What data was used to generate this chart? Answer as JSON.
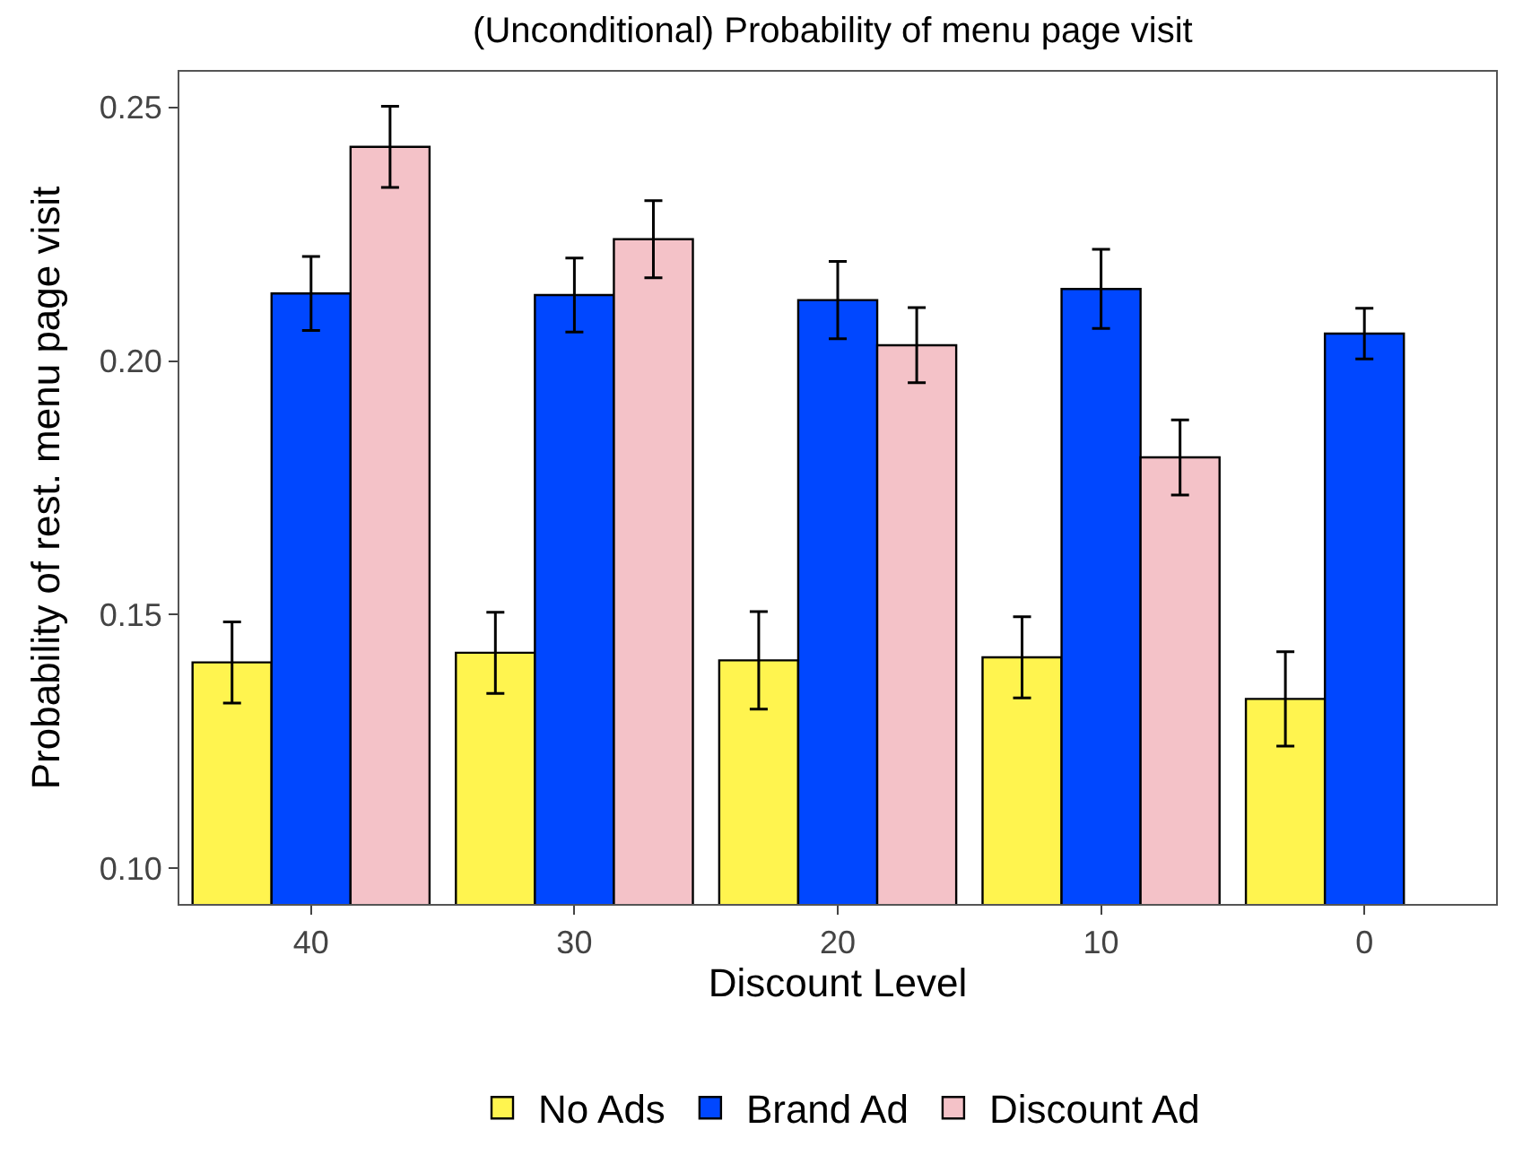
{
  "chart_data": {
    "type": "bar",
    "title": "(Unconditional) Probability of menu page visit",
    "xlabel": "Discount Level",
    "ylabel": "Probability of rest. menu page visit",
    "categories": [
      "40",
      "30",
      "20",
      "10",
      "0"
    ],
    "series": [
      {
        "name": "No Ads",
        "color": "#fff44f",
        "values": [
          0.1406,
          0.1425,
          0.141,
          0.1416,
          0.1334
        ],
        "errors": [
          0.008,
          0.008,
          0.0096,
          0.008,
          0.0093
        ]
      },
      {
        "name": "Brand Ad",
        "color": "#0047ff",
        "values": [
          0.2133,
          0.213,
          0.212,
          0.2142,
          0.2054
        ],
        "errors": [
          0.0073,
          0.0073,
          0.0076,
          0.0078,
          0.005
        ]
      },
      {
        "name": "Discount Ad",
        "color": "#f4c2c8",
        "values": [
          0.2422,
          0.224,
          0.2031,
          0.181,
          null
        ],
        "errors": [
          0.008,
          0.0076,
          0.0074,
          0.0074,
          null
        ]
      }
    ],
    "ylim": [
      0.093,
      0.257
    ],
    "yticks": [
      {
        "value": 0.1,
        "label": "0.10"
      },
      0.15,
      {
        "value": 0.2,
        "label": "0.20"
      },
      0.25
    ],
    "legend": "bottom"
  }
}
